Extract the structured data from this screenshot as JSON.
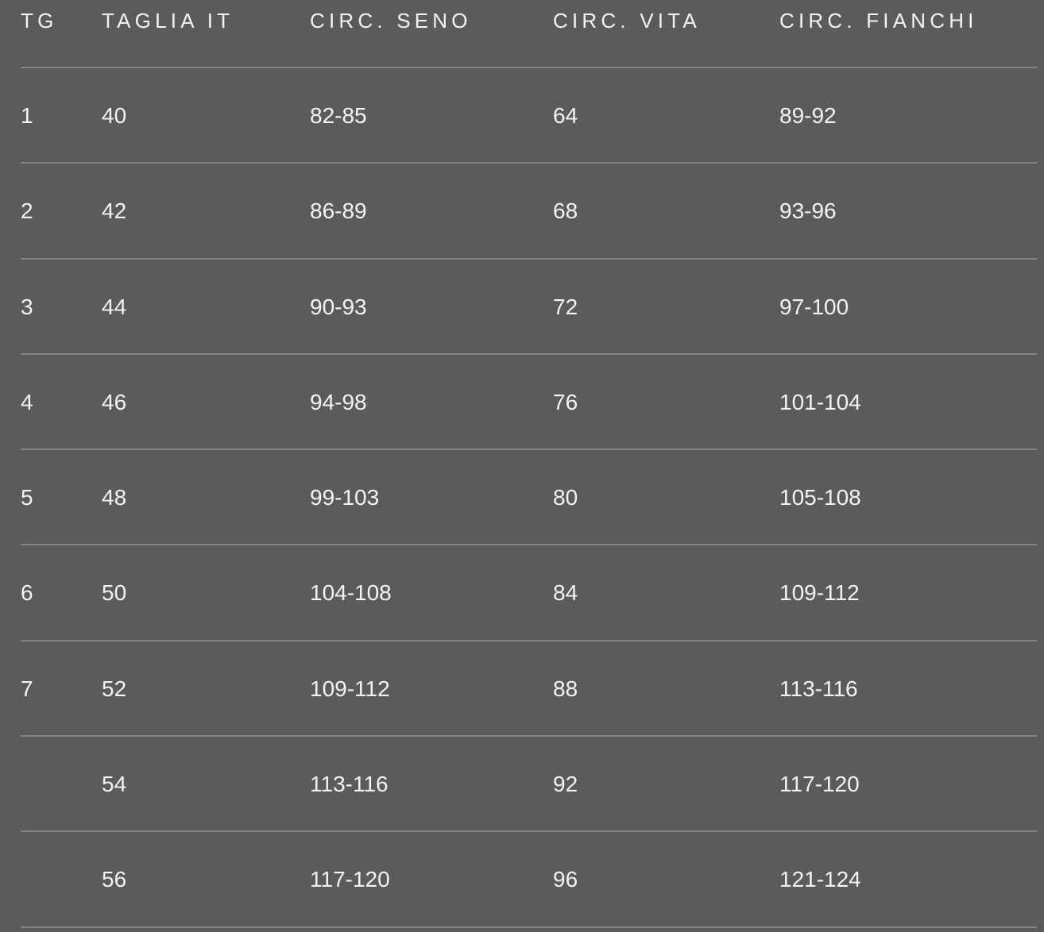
{
  "table": {
    "headers": [
      "TG",
      "TAGLIA IT",
      "CIRC. SENO",
      "CIRC. VITA",
      "CIRC. FIANCHI"
    ],
    "rows": [
      [
        "1",
        "40",
        "82-85",
        "64",
        "89-92"
      ],
      [
        "2",
        "42",
        "86-89",
        "68",
        "93-96"
      ],
      [
        "3",
        "44",
        "90-93",
        "72",
        "97-100"
      ],
      [
        "4",
        "46",
        "94-98",
        "76",
        "101-104"
      ],
      [
        "5",
        "48",
        "99-103",
        "80",
        "105-108"
      ],
      [
        "6",
        "50",
        "104-108",
        "84",
        "109-112"
      ],
      [
        "7",
        "52",
        "109-112",
        "88",
        "113-116"
      ],
      [
        "",
        "54",
        "113-116",
        "92",
        "117-120"
      ],
      [
        "",
        "56",
        "117-120",
        "96",
        "121-124"
      ]
    ]
  },
  "colors": {
    "background": "#5b5b5b",
    "text": "#f4f4f4",
    "divider": "#858585"
  }
}
